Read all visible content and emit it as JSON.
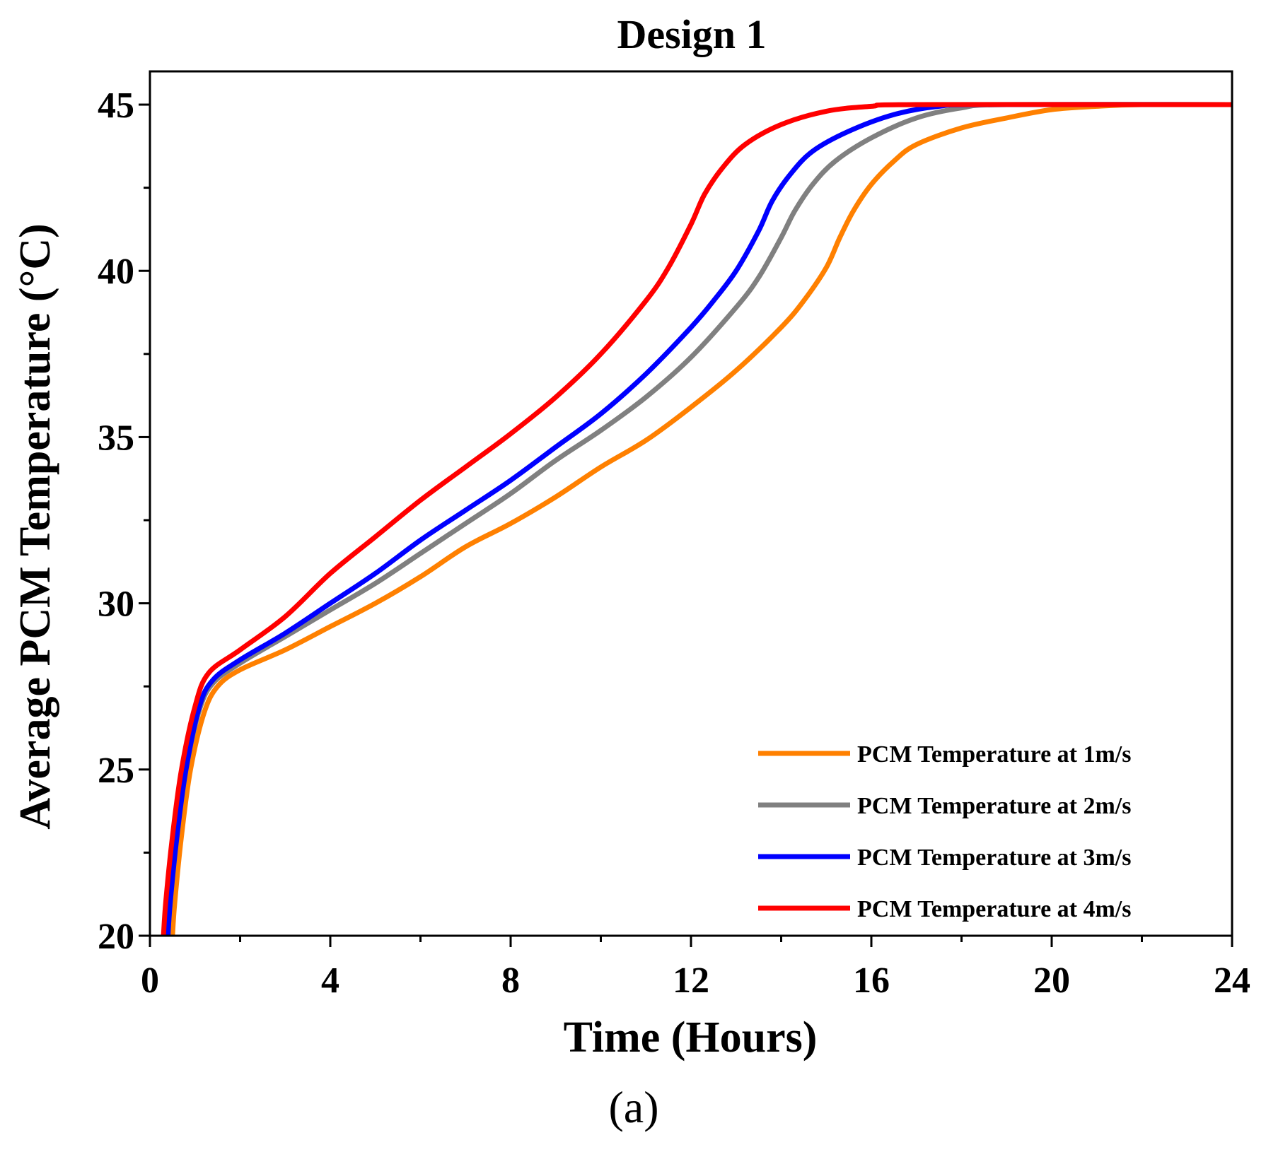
{
  "chart_data": {
    "type": "line",
    "title": "Design 1",
    "xlabel": "Time (Hours)",
    "ylabel": "Average PCM Temperature (°C)",
    "caption": "(a)",
    "xlim": [
      0,
      24
    ],
    "ylim": [
      20,
      46
    ],
    "xticks": [
      0,
      4,
      8,
      12,
      16,
      20,
      24
    ],
    "yticks": [
      20,
      25,
      30,
      35,
      40,
      45
    ],
    "xtick_labels": [
      "0",
      "4",
      "8",
      "12",
      "16",
      "20",
      "24"
    ],
    "ytick_labels": [
      "20",
      "25",
      "30",
      "35",
      "40",
      "45"
    ],
    "grid": false,
    "legend_position": "bottom-right",
    "series": [
      {
        "name": "PCM Temperature at 1m/s",
        "color": "#FF8000",
        "points": [
          [
            0.5,
            20
          ],
          [
            0.55,
            21
          ],
          [
            0.7,
            23
          ],
          [
            0.9,
            25
          ],
          [
            1.2,
            26.7
          ],
          [
            1.5,
            27.5
          ],
          [
            2,
            28
          ],
          [
            3,
            28.6
          ],
          [
            4,
            29.3
          ],
          [
            5,
            30
          ],
          [
            6,
            30.8
          ],
          [
            7,
            31.7
          ],
          [
            8,
            32.4
          ],
          [
            9,
            33.2
          ],
          [
            10,
            34.1
          ],
          [
            11,
            34.9
          ],
          [
            12,
            35.9
          ],
          [
            13,
            37
          ],
          [
            14,
            38.3
          ],
          [
            14.5,
            39.1
          ],
          [
            15,
            40.1
          ],
          [
            15.3,
            41
          ],
          [
            15.6,
            41.8
          ],
          [
            16,
            42.6
          ],
          [
            16.5,
            43.3
          ],
          [
            17,
            43.8
          ],
          [
            18,
            44.3
          ],
          [
            19,
            44.6
          ],
          [
            20,
            44.85
          ],
          [
            21,
            44.95
          ],
          [
            22,
            45
          ],
          [
            24,
            45
          ]
        ]
      },
      {
        "name": "PCM Temperature at 2m/s",
        "color": "#808080",
        "points": [
          [
            0.4,
            20
          ],
          [
            0.45,
            21
          ],
          [
            0.6,
            23
          ],
          [
            0.8,
            25
          ],
          [
            1.1,
            26.8
          ],
          [
            1.4,
            27.6
          ],
          [
            2,
            28.2
          ],
          [
            3,
            29
          ],
          [
            4,
            29.8
          ],
          [
            5,
            30.6
          ],
          [
            6,
            31.5
          ],
          [
            7,
            32.4
          ],
          [
            8,
            33.3
          ],
          [
            9,
            34.3
          ],
          [
            10,
            35.2
          ],
          [
            11,
            36.2
          ],
          [
            12,
            37.4
          ],
          [
            13,
            38.9
          ],
          [
            13.5,
            39.8
          ],
          [
            14,
            41
          ],
          [
            14.3,
            41.8
          ],
          [
            14.7,
            42.6
          ],
          [
            15.2,
            43.3
          ],
          [
            16,
            44
          ],
          [
            17,
            44.6
          ],
          [
            18,
            44.9
          ],
          [
            19,
            45
          ],
          [
            24,
            45
          ]
        ]
      },
      {
        "name": "PCM Temperature at 3m/s",
        "color": "#0000FF",
        "points": [
          [
            0.4,
            20
          ],
          [
            0.45,
            21
          ],
          [
            0.6,
            23
          ],
          [
            0.8,
            25
          ],
          [
            1.1,
            26.9
          ],
          [
            1.4,
            27.7
          ],
          [
            2,
            28.3
          ],
          [
            3,
            29.1
          ],
          [
            4,
            30
          ],
          [
            5,
            30.9
          ],
          [
            6,
            31.9
          ],
          [
            7,
            32.8
          ],
          [
            8,
            33.7
          ],
          [
            9,
            34.7
          ],
          [
            10,
            35.7
          ],
          [
            11,
            36.9
          ],
          [
            12,
            38.3
          ],
          [
            12.5,
            39.1
          ],
          [
            13,
            40
          ],
          [
            13.5,
            41.2
          ],
          [
            13.8,
            42.1
          ],
          [
            14.2,
            42.9
          ],
          [
            14.7,
            43.6
          ],
          [
            15.5,
            44.2
          ],
          [
            16.5,
            44.7
          ],
          [
            17.5,
            44.95
          ],
          [
            18.5,
            45
          ],
          [
            24,
            45
          ]
        ]
      },
      {
        "name": "PCM Temperature at 4m/s",
        "color": "#FF0000",
        "points": [
          [
            0.3,
            20
          ],
          [
            0.35,
            21
          ],
          [
            0.5,
            23
          ],
          [
            0.7,
            25
          ],
          [
            1,
            26.9
          ],
          [
            1.3,
            27.9
          ],
          [
            2,
            28.6
          ],
          [
            3,
            29.6
          ],
          [
            4,
            30.9
          ],
          [
            5,
            32
          ],
          [
            6,
            33.1
          ],
          [
            7,
            34.1
          ],
          [
            8,
            35.1
          ],
          [
            9,
            36.2
          ],
          [
            10,
            37.5
          ],
          [
            11,
            39.1
          ],
          [
            11.5,
            40.1
          ],
          [
            12,
            41.4
          ],
          [
            12.3,
            42.3
          ],
          [
            12.7,
            43.1
          ],
          [
            13.2,
            43.8
          ],
          [
            14,
            44.4
          ],
          [
            15,
            44.8
          ],
          [
            16,
            44.95
          ],
          [
            17,
            45
          ],
          [
            24,
            45
          ]
        ]
      }
    ]
  }
}
